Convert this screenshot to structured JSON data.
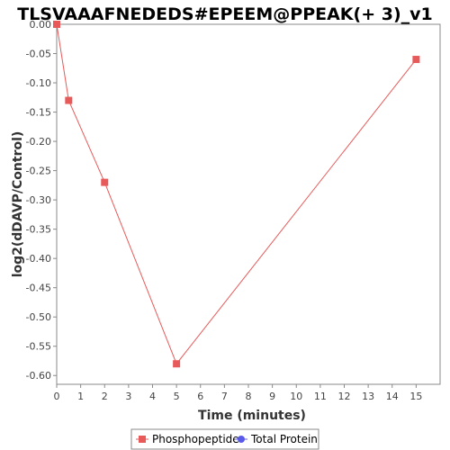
{
  "chart_data": {
    "type": "line",
    "title": "TLSVAAAFNEDEDS#EPEEM@PPEAK(+ 3)_v1",
    "xlabel": "Time (minutes)",
    "ylabel": "log2(dDAVP/Control)",
    "xlim": [
      0,
      16
    ],
    "ylim": [
      -0.615,
      0.0
    ],
    "x_ticks": [
      0,
      1,
      2,
      3,
      4,
      5,
      6,
      7,
      8,
      9,
      10,
      11,
      12,
      13,
      14,
      15
    ],
    "y_ticks": [
      0.0,
      -0.05,
      -0.1,
      -0.15,
      -0.2,
      -0.25,
      -0.3,
      -0.35,
      -0.4,
      -0.45,
      -0.5,
      -0.55,
      -0.6
    ],
    "y_tick_labels": [
      "0.00",
      "-0.05",
      "-0.10",
      "-0.15",
      "-0.20",
      "-0.25",
      "-0.30",
      "-0.35",
      "-0.40",
      "-0.45",
      "-0.50",
      "-0.55",
      "-0.60"
    ],
    "series": [
      {
        "name": "Phosphopeptide",
        "color": "#e85a5a",
        "marker": "square",
        "x": [
          0,
          0.5,
          2,
          5,
          15
        ],
        "y": [
          0.0,
          -0.13,
          -0.27,
          -0.58,
          -0.06
        ]
      },
      {
        "name": "Total Protein",
        "color": "#5a5ae8",
        "marker": "circle",
        "x": [],
        "y": []
      }
    ],
    "grid": false,
    "legend_position": "bottom-center"
  }
}
